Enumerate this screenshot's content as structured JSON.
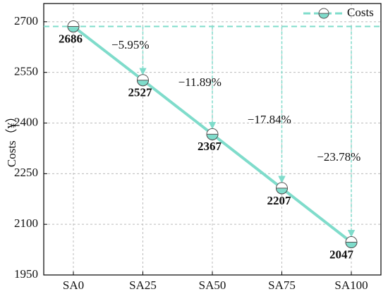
{
  "chart_data": {
    "type": "line",
    "y_label": "Costs（¥）",
    "categories": [
      "SA0",
      "SA25",
      "SA50",
      "SA75",
      "SA100"
    ],
    "series": [
      {
        "name": "Costs",
        "color": "#7fdccb",
        "values": [
          2686,
          2527,
          2367,
          2207,
          2047
        ]
      }
    ],
    "annotations": [
      "−5.95%",
      "−11.89%",
      "−17.84%",
      "−23.78%"
    ],
    "ylim": [
      1950,
      2754
    ],
    "yticks": [
      1950,
      2100,
      2250,
      2400,
      2550,
      2700
    ],
    "grid": true,
    "legend": "upper right"
  }
}
